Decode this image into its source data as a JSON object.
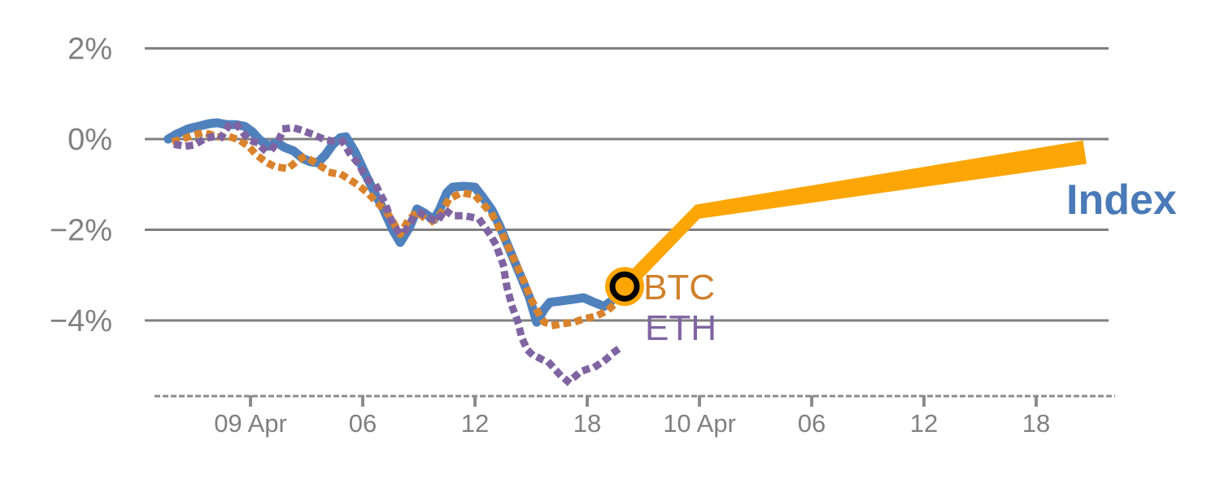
{
  "chart_data": {
    "type": "line",
    "title": "",
    "unit": "percent change",
    "x_axis": {
      "ticks": [
        {
          "t": 0,
          "label": "09 Apr"
        },
        {
          "t": 6,
          "label": "06"
        },
        {
          "t": 12,
          "label": "12"
        },
        {
          "t": 18,
          "label": "18"
        },
        {
          "t": 24,
          "label": "10 Apr"
        },
        {
          "t": 30,
          "label": "06"
        },
        {
          "t": 36,
          "label": "12"
        },
        {
          "t": 42,
          "label": "18"
        }
      ],
      "range_hours": [
        -5.7,
        46.2
      ],
      "style": "dashed-baseline"
    },
    "y_axis": {
      "ticks": [
        {
          "v": 2,
          "label": "2%"
        },
        {
          "v": 0,
          "label": "0%"
        },
        {
          "v": -2,
          "label": "−2%"
        },
        {
          "v": -4,
          "label": "−4%"
        }
      ],
      "range": [
        -5.7,
        2.4
      ],
      "grid": "horizontal"
    },
    "series": [
      {
        "name": "Index",
        "label": "Index",
        "style": "solid",
        "color": "#4F81BD",
        "label_color": "#4A7AB7",
        "points": [
          [
            -4.4,
            0.0
          ],
          [
            -4.0,
            0.1
          ],
          [
            -3.3,
            0.23
          ],
          [
            -2.7,
            0.29
          ],
          [
            -2.2,
            0.34
          ],
          [
            -1.8,
            0.36
          ],
          [
            -1.3,
            0.32
          ],
          [
            -0.8,
            0.32
          ],
          [
            -0.3,
            0.28
          ],
          [
            0.1,
            0.16
          ],
          [
            0.5,
            -0.02
          ],
          [
            1.0,
            -0.16
          ],
          [
            1.4,
            -0.07
          ],
          [
            1.8,
            -0.18
          ],
          [
            2.3,
            -0.26
          ],
          [
            2.8,
            -0.43
          ],
          [
            3.2,
            -0.5
          ],
          [
            3.6,
            -0.52
          ],
          [
            4.0,
            -0.35
          ],
          [
            4.4,
            -0.12
          ],
          [
            4.8,
            0.03
          ],
          [
            5.1,
            0.05
          ],
          [
            5.6,
            -0.29
          ],
          [
            6.2,
            -0.82
          ],
          [
            6.7,
            -1.24
          ],
          [
            7.1,
            -1.54
          ],
          [
            7.6,
            -2.0
          ],
          [
            8.0,
            -2.28
          ],
          [
            8.5,
            -1.95
          ],
          [
            8.9,
            -1.54
          ],
          [
            9.3,
            -1.63
          ],
          [
            9.8,
            -1.78
          ],
          [
            10.1,
            -1.56
          ],
          [
            10.5,
            -1.18
          ],
          [
            10.8,
            -1.06
          ],
          [
            11.4,
            -1.04
          ],
          [
            12.0,
            -1.06
          ],
          [
            12.4,
            -1.27
          ],
          [
            12.9,
            -1.56
          ],
          [
            13.3,
            -1.9
          ],
          [
            13.9,
            -2.49
          ],
          [
            14.4,
            -2.98
          ],
          [
            14.9,
            -3.48
          ],
          [
            15.3,
            -4.04
          ],
          [
            15.7,
            -3.75
          ],
          [
            16.0,
            -3.6
          ],
          [
            16.6,
            -3.57
          ],
          [
            17.3,
            -3.53
          ],
          [
            17.8,
            -3.5
          ],
          [
            18.3,
            -3.59
          ],
          [
            18.9,
            -3.69
          ],
          [
            19.3,
            -3.57
          ],
          [
            19.7,
            -3.35
          ],
          [
            20.0,
            -3.25
          ]
        ]
      },
      {
        "name": "BTC",
        "label": "BTC",
        "style": "dotted",
        "color": "#D9832D",
        "label_color": "#D0802B",
        "points": [
          [
            -4.0,
            -0.04
          ],
          [
            -3.6,
            0.0
          ],
          [
            -3.2,
            0.07
          ],
          [
            -2.6,
            0.14
          ],
          [
            -2.2,
            0.11
          ],
          [
            -1.7,
            0.05
          ],
          [
            -1.1,
            0.05
          ],
          [
            -0.6,
            -0.02
          ],
          [
            -0.1,
            -0.16
          ],
          [
            0.3,
            -0.34
          ],
          [
            0.8,
            -0.5
          ],
          [
            1.3,
            -0.61
          ],
          [
            2.0,
            -0.65
          ],
          [
            2.5,
            -0.48
          ],
          [
            2.9,
            -0.38
          ],
          [
            3.3,
            -0.48
          ],
          [
            3.8,
            -0.61
          ],
          [
            4.3,
            -0.74
          ],
          [
            4.9,
            -0.79
          ],
          [
            5.4,
            -0.92
          ],
          [
            5.9,
            -1.06
          ],
          [
            6.3,
            -1.2
          ],
          [
            6.7,
            -1.38
          ],
          [
            7.2,
            -1.56
          ],
          [
            7.6,
            -1.81
          ],
          [
            8.0,
            -2.1
          ],
          [
            8.4,
            -1.81
          ],
          [
            8.9,
            -1.6
          ],
          [
            9.3,
            -1.74
          ],
          [
            9.7,
            -1.81
          ],
          [
            10.2,
            -1.63
          ],
          [
            10.6,
            -1.33
          ],
          [
            11.0,
            -1.24
          ],
          [
            11.5,
            -1.2
          ],
          [
            12.0,
            -1.24
          ],
          [
            12.4,
            -1.42
          ],
          [
            12.9,
            -1.65
          ],
          [
            13.4,
            -2.04
          ],
          [
            14.0,
            -2.58
          ],
          [
            14.6,
            -3.12
          ],
          [
            15.0,
            -3.53
          ],
          [
            15.4,
            -3.84
          ],
          [
            15.7,
            -4.04
          ],
          [
            16.2,
            -4.11
          ],
          [
            16.7,
            -4.07
          ],
          [
            17.3,
            -4.04
          ],
          [
            17.7,
            -3.98
          ],
          [
            18.2,
            -3.93
          ],
          [
            18.7,
            -3.86
          ],
          [
            19.1,
            -3.78
          ],
          [
            19.5,
            -3.62
          ],
          [
            20.0,
            -3.25
          ]
        ]
      },
      {
        "name": "ETH",
        "label": "ETH",
        "style": "dotted",
        "color": "#8064A2",
        "label_color": "#8064A2",
        "points": [
          [
            -3.9,
            -0.13
          ],
          [
            -3.5,
            -0.16
          ],
          [
            -3.0,
            -0.13
          ],
          [
            -2.4,
            0.02
          ],
          [
            -2.0,
            0.05
          ],
          [
            -1.6,
            0.02
          ],
          [
            -1.1,
            0.34
          ],
          [
            -0.7,
            0.3
          ],
          [
            -0.1,
            -0.02
          ],
          [
            0.3,
            -0.07
          ],
          [
            0.7,
            -0.22
          ],
          [
            1.1,
            -0.25
          ],
          [
            1.5,
            -0.02
          ],
          [
            1.8,
            0.23
          ],
          [
            2.3,
            0.25
          ],
          [
            2.7,
            0.2
          ],
          [
            3.3,
            0.11
          ],
          [
            3.8,
            0.02
          ],
          [
            4.3,
            -0.04
          ],
          [
            4.9,
            -0.04
          ],
          [
            5.3,
            -0.31
          ],
          [
            5.8,
            -0.56
          ],
          [
            6.2,
            -0.88
          ],
          [
            6.7,
            -1.02
          ],
          [
            7.2,
            -1.42
          ],
          [
            7.6,
            -1.87
          ],
          [
            7.9,
            -2.04
          ],
          [
            8.2,
            -2.08
          ],
          [
            8.7,
            -1.74
          ],
          [
            9.1,
            -1.63
          ],
          [
            9.5,
            -1.74
          ],
          [
            10.0,
            -1.81
          ],
          [
            10.4,
            -1.56
          ],
          [
            10.8,
            -1.69
          ],
          [
            11.4,
            -1.69
          ],
          [
            11.8,
            -1.72
          ],
          [
            12.3,
            -1.81
          ],
          [
            12.7,
            -2.04
          ],
          [
            13.1,
            -2.31
          ],
          [
            13.5,
            -2.76
          ],
          [
            13.7,
            -3.25
          ],
          [
            14.0,
            -3.71
          ],
          [
            14.3,
            -4.04
          ],
          [
            14.5,
            -4.38
          ],
          [
            14.8,
            -4.65
          ],
          [
            15.1,
            -4.77
          ],
          [
            15.4,
            -4.82
          ],
          [
            16.0,
            -4.95
          ],
          [
            16.5,
            -5.18
          ],
          [
            17.0,
            -5.36
          ],
          [
            17.5,
            -5.18
          ],
          [
            17.9,
            -5.09
          ],
          [
            18.5,
            -5.0
          ],
          [
            19.0,
            -4.86
          ],
          [
            19.5,
            -4.68
          ],
          [
            19.9,
            -4.56
          ]
        ]
      },
      {
        "name": "Index projection",
        "label": "",
        "style": "tapered-band",
        "color": "#FCA606",
        "points": [
          [
            20.0,
            -3.25
          ],
          [
            23.9,
            -1.6
          ],
          [
            44.6,
            -0.29
          ]
        ]
      }
    ],
    "marker": {
      "t": 20.0,
      "v": -3.25,
      "type": "ring",
      "fill": "#FCA606",
      "ring_color": "#000000"
    },
    "series_labels": {
      "btc": "BTC",
      "eth": "ETH",
      "index": "Index"
    },
    "layout_hints": {
      "legend": "inline labels at right of lines",
      "grid_color": "#7F7F7F",
      "axis_color": "#8C8C8C",
      "tick_text_color": "#808080"
    }
  }
}
